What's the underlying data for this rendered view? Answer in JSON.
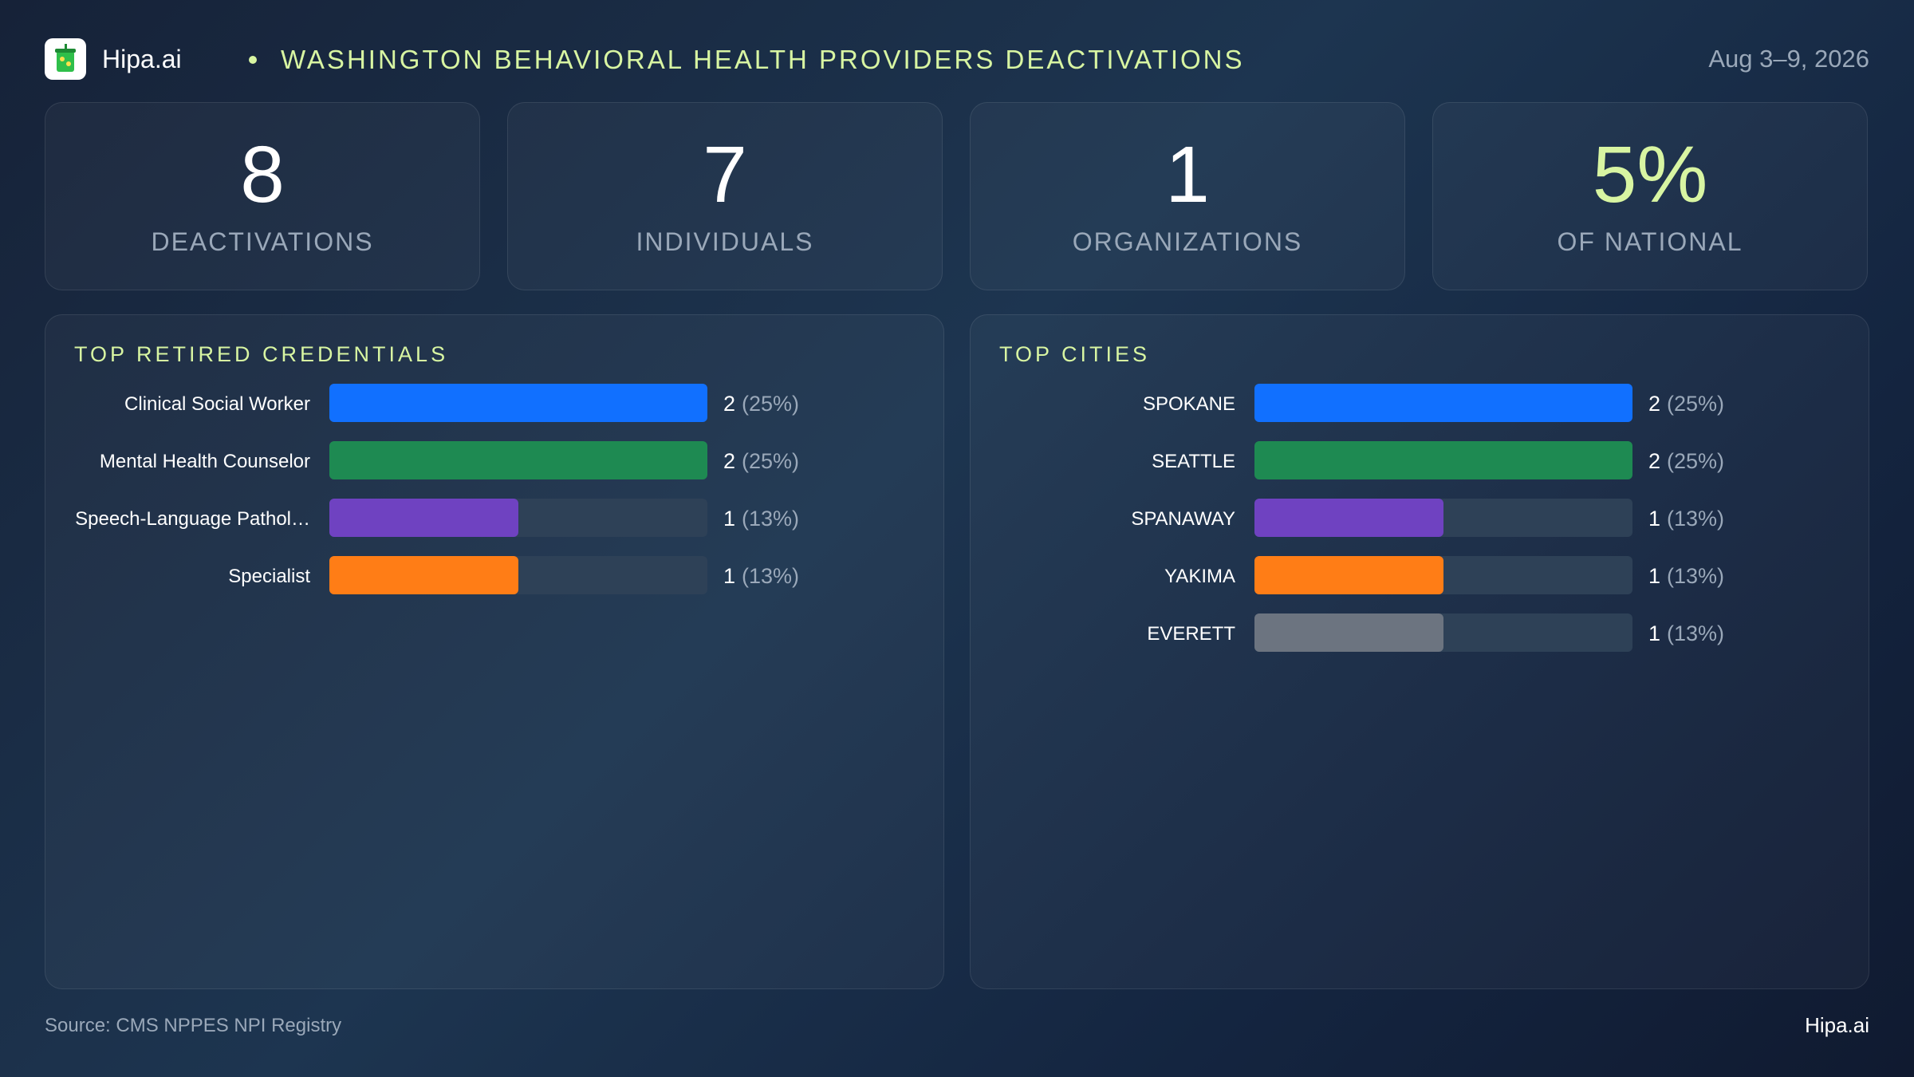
{
  "header": {
    "brand": "Hipa.ai",
    "title": "WASHINGTON BEHAVIORAL HEALTH PROVIDERS DEACTIVATIONS",
    "date": "Aug 3–9, 2026",
    "logo_icon": "cup-icon"
  },
  "kpis": [
    {
      "value": "8",
      "label": "DEACTIVATIONS"
    },
    {
      "value": "7",
      "label": "INDIVIDUALS"
    },
    {
      "value": "1",
      "label": "ORGANIZATIONS"
    },
    {
      "value": "5%",
      "label": "OF NATIONAL",
      "accent": "#d8f5a2"
    }
  ],
  "colors": {
    "accent": "#d8f5a2",
    "track": "#2e4157",
    "bars": [
      "#1170ff",
      "#1e8a52",
      "#6f42c1",
      "#ff7d16",
      "#6c7480"
    ]
  },
  "chart_data": [
    {
      "type": "bar",
      "orientation": "horizontal",
      "title": "TOP RETIRED CREDENTIALS",
      "categories": [
        "Clinical Social Worker",
        "Mental Health Counselor",
        "Speech-Language Pathol…",
        "Specialist"
      ],
      "values": [
        2,
        2,
        1,
        1
      ],
      "value_labels": [
        "2",
        "2",
        "1",
        "1"
      ],
      "pct_labels": [
        "(25%)",
        "(25%)",
        "(13%)",
        "(13%)"
      ],
      "xlim": [
        0,
        2
      ]
    },
    {
      "type": "bar",
      "orientation": "horizontal",
      "title": "TOP CITIES",
      "categories": [
        "SPOKANE",
        "SEATTLE",
        "SPANAWAY",
        "YAKIMA",
        "EVERETT"
      ],
      "values": [
        2,
        2,
        1,
        1,
        1
      ],
      "value_labels": [
        "2",
        "2",
        "1",
        "1",
        "1"
      ],
      "pct_labels": [
        "(25%)",
        "(25%)",
        "(13%)",
        "(13%)",
        "(13%)"
      ],
      "xlim": [
        0,
        2
      ]
    }
  ],
  "footer": {
    "source": "Source: CMS NPPES NPI Registry",
    "brand": "Hipa.ai"
  }
}
